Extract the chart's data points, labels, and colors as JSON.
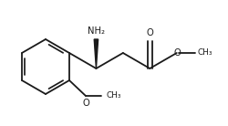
{
  "background_color": "#ffffff",
  "line_color": "#1a1a1a",
  "line_width": 1.3,
  "font_size": 7.2,
  "figsize": [
    2.5,
    1.38
  ],
  "dpi": 100,
  "xlim": [
    0.0,
    2.5
  ],
  "ylim": [
    0.0,
    1.38
  ]
}
